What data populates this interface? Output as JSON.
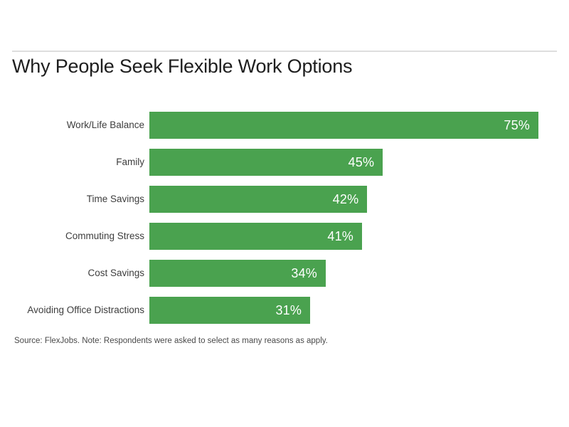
{
  "chart_data": {
    "type": "bar",
    "orientation": "horizontal",
    "title": "Why People Seek Flexible Work Options",
    "categories": [
      "Work/Life Balance",
      "Family",
      "Time Savings",
      "Commuting Stress",
      "Cost Savings",
      "Avoiding Office Distractions"
    ],
    "values": [
      75,
      45,
      42,
      41,
      34,
      31
    ],
    "value_labels": [
      "75%",
      "45%",
      "42%",
      "41%",
      "34%",
      "31%"
    ],
    "xlim": [
      0,
      75
    ],
    "xlabel": "",
    "ylabel": "",
    "grid": false,
    "legend": false,
    "bar_color": "#4aa24f",
    "value_label_color": "#ffffff",
    "category_label_color": "#3d3d3d",
    "source_note": "Source: FlexJobs. Note: Respondents were asked to select as many reasons as apply."
  }
}
